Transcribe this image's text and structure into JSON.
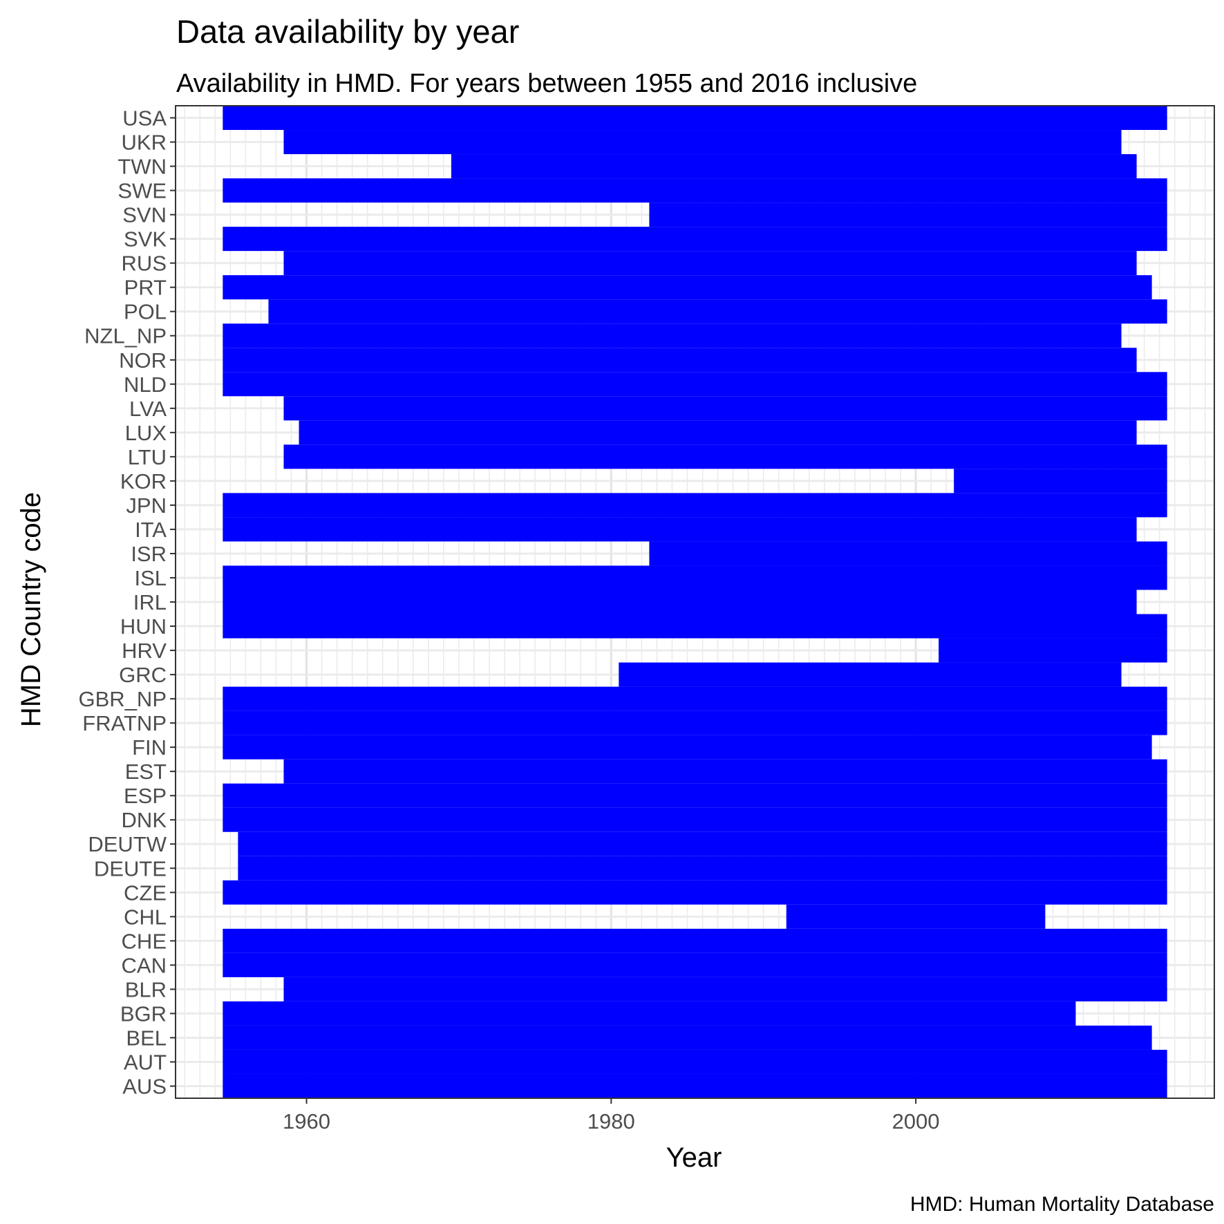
{
  "chart_data": {
    "type": "bar",
    "orientation": "horizontal-range",
    "title": "Data availability by year",
    "subtitle": "Availability in HMD. For years between 1955 and 2016 inclusive",
    "xlabel": "Year",
    "ylabel": "HMD Country code",
    "caption": "HMD: Human Mortality Database",
    "xlim": [
      1951.4,
      2019.6
    ],
    "x_ticks": [
      1960,
      1980,
      2000
    ],
    "grid": true,
    "bar_color": "#0000ff",
    "categories": [
      "AUS",
      "AUT",
      "BEL",
      "BGR",
      "BLR",
      "CAN",
      "CHE",
      "CHL",
      "CZE",
      "DEUTE",
      "DEUTW",
      "DNK",
      "ESP",
      "EST",
      "FIN",
      "FRATNP",
      "GBR_NP",
      "GRC",
      "HRV",
      "HUN",
      "IRL",
      "ISL",
      "ISR",
      "ITA",
      "JPN",
      "KOR",
      "LTU",
      "LUX",
      "LVA",
      "NLD",
      "NOR",
      "NZL_NP",
      "POL",
      "PRT",
      "RUS",
      "SVK",
      "SVN",
      "SWE",
      "TWN",
      "UKR",
      "USA"
    ],
    "ranges": [
      [
        1955,
        2016
      ],
      [
        1955,
        2016
      ],
      [
        1955,
        2015
      ],
      [
        1955,
        2010
      ],
      [
        1959,
        2016
      ],
      [
        1955,
        2016
      ],
      [
        1955,
        2016
      ],
      [
        1992,
        2008
      ],
      [
        1955,
        2016
      ],
      [
        1956,
        2016
      ],
      [
        1956,
        2016
      ],
      [
        1955,
        2016
      ],
      [
        1955,
        2016
      ],
      [
        1959,
        2016
      ],
      [
        1955,
        2015
      ],
      [
        1955,
        2016
      ],
      [
        1955,
        2016
      ],
      [
        1981,
        2013
      ],
      [
        2002,
        2016
      ],
      [
        1955,
        2016
      ],
      [
        1955,
        2014
      ],
      [
        1955,
        2016
      ],
      [
        1983,
        2016
      ],
      [
        1955,
        2014
      ],
      [
        1955,
        2016
      ],
      [
        2003,
        2016
      ],
      [
        1959,
        2016
      ],
      [
        1960,
        2014
      ],
      [
        1959,
        2016
      ],
      [
        1955,
        2016
      ],
      [
        1955,
        2014
      ],
      [
        1955,
        2013
      ],
      [
        1958,
        2016
      ],
      [
        1955,
        2015
      ],
      [
        1959,
        2014
      ],
      [
        1955,
        2016
      ],
      [
        1983,
        2016
      ],
      [
        1955,
        2016
      ],
      [
        1970,
        2014
      ],
      [
        1959,
        2013
      ],
      [
        1955,
        2016
      ]
    ]
  }
}
